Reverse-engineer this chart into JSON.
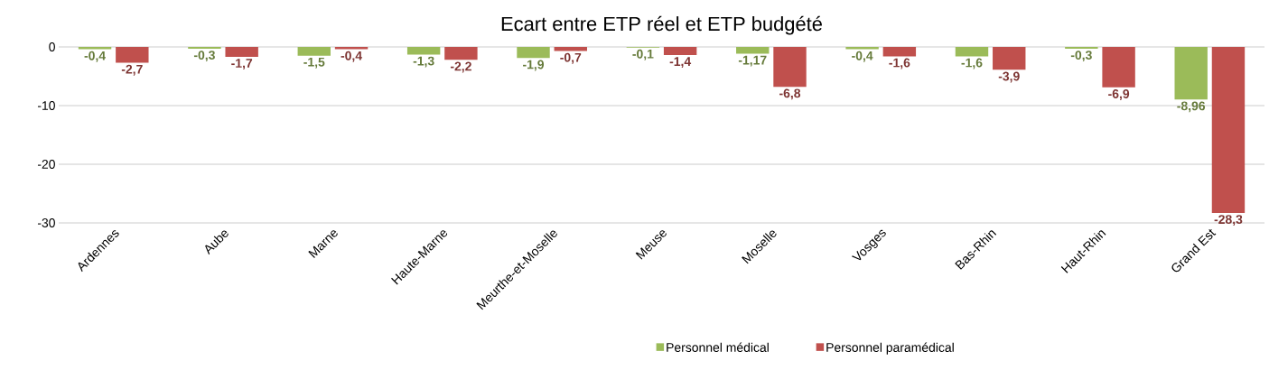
{
  "chart_data": {
    "type": "bar",
    "title": "Ecart entre ETP réel et ETP budgété",
    "categories": [
      "Ardennes",
      "Aube",
      "Marne",
      "Haute-Marne",
      "Meurthe-et-Moselle",
      "Meuse",
      "Moselle",
      "Vosges",
      "Bas-Rhin",
      "Haut-Rhin",
      "Grand Est"
    ],
    "series": [
      {
        "name": "Personnel médical",
        "color": "#9bbb59",
        "values": [
          -0.4,
          -0.3,
          -1.5,
          -1.3,
          -1.9,
          -0.1,
          -1.17,
          -0.4,
          -1.6,
          -0.3,
          -8.96
        ],
        "value_labels": [
          "-0,4",
          "-0,3",
          "-1,5",
          "-1,3",
          "-1,9",
          "-0,1",
          "-1,17",
          "-0,4",
          "-1,6",
          "-0,3",
          "-8,96"
        ]
      },
      {
        "name": "Personnel paramédical",
        "color": "#c0504d",
        "values": [
          -2.7,
          -1.7,
          -0.4,
          -2.2,
          -0.7,
          -1.4,
          -6.8,
          -1.6,
          -3.9,
          -6.9,
          -28.3
        ],
        "value_labels": [
          "-2,7",
          "-1,7",
          "-0,4",
          "-2,2",
          "-0,7",
          "-1,4",
          "-6,8",
          "-1,6",
          "-3,9",
          "-6,9",
          "-28,3"
        ]
      }
    ],
    "ylim": [
      -30,
      0
    ],
    "yticks": [
      0,
      -10,
      -20,
      -30
    ],
    "grid": "y",
    "legend": "bottom"
  }
}
